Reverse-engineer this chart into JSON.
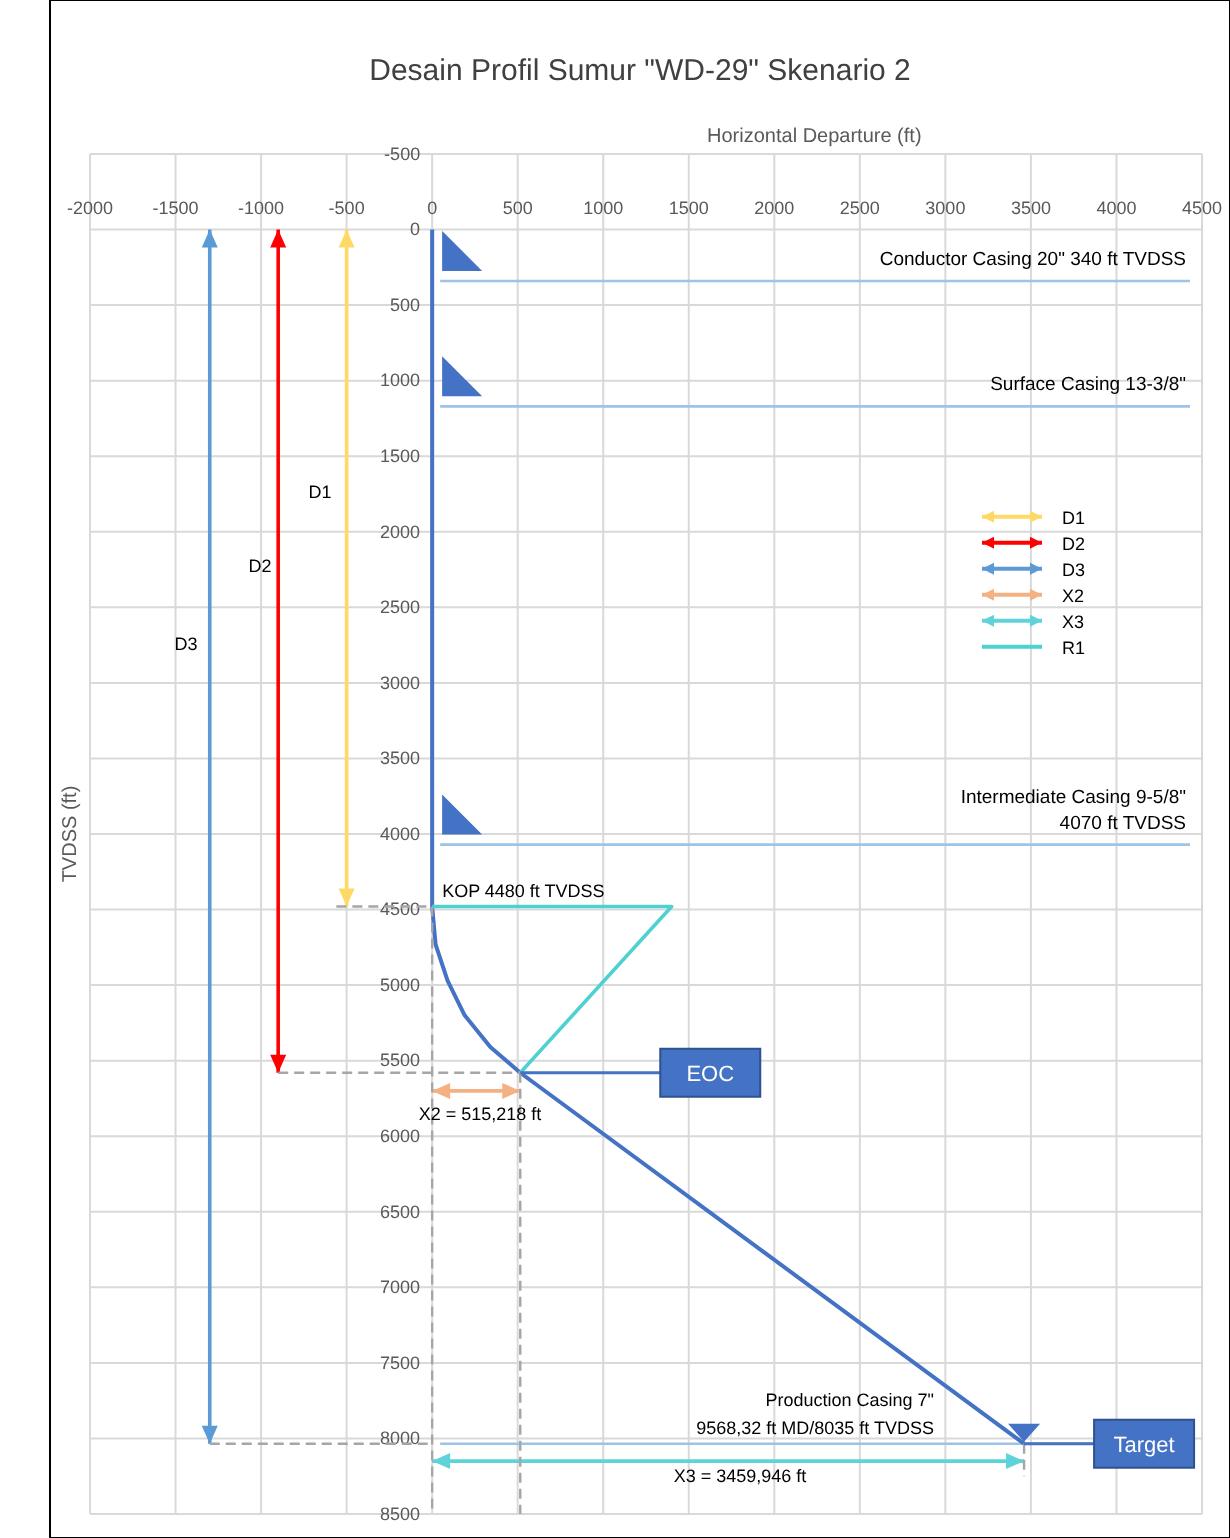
{
  "chart_data": {
    "type": "line",
    "title": "Desain Profil Sumur \"WD-29\" Skenario 2",
    "xlabel": "Horizontal Departure (ft)",
    "ylabel": "TVDSS (ft)",
    "xlim": [
      -2000,
      4500
    ],
    "xticks": [
      -2000,
      -1500,
      -1000,
      -500,
      0,
      500,
      1000,
      1500,
      2000,
      2500,
      3000,
      3500,
      4000,
      4500
    ],
    "ylim": [
      8500,
      -500
    ],
    "yticks": [
      -500,
      0,
      500,
      1000,
      1500,
      2000,
      2500,
      3000,
      3500,
      4000,
      4500,
      5000,
      5500,
      6000,
      6500,
      7000,
      7500,
      8000,
      8500
    ],
    "grid": true,
    "legend": "right",
    "marker": "none",
    "series": [
      {
        "x": [
          0,
          0,
          20,
          90,
          190,
          340,
          515,
          3460
        ],
        "values": [
          0,
          4480,
          4730,
          4970,
          5200,
          5410,
          5580,
          8035
        ],
        "color": "#4472c4",
        "line_style": "solid"
      },
      {
        "name": "D1",
        "x": [
          -500,
          -500
        ],
        "values": [
          0,
          4480
        ],
        "color": "#ffd966",
        "line_style": "solid"
      },
      {
        "name": "D2",
        "x": [
          -900,
          -900
        ],
        "values": [
          0,
          5580
        ],
        "color": "#ff0000",
        "line_style": "solid"
      },
      {
        "name": "D3",
        "x": [
          -1300,
          -1300
        ],
        "values": [
          0,
          8035
        ],
        "color": "#5b9bd5",
        "line_style": "solid"
      },
      {
        "name": "X2",
        "x": [
          0,
          515
        ],
        "values": [
          5700,
          5700
        ],
        "color": "#f4b183",
        "line_style": "solid"
      },
      {
        "name": "X3",
        "x": [
          0,
          3460
        ],
        "values": [
          8150,
          8150
        ],
        "color": "#5fd3d9",
        "line_style": "solid"
      },
      {
        "name": "R1",
        "x": [
          0,
          1400,
          515
        ],
        "values": [
          4480,
          4480,
          5580
        ],
        "color": "#4fd1d1",
        "line_style": "solid"
      },
      {
        "x": [
          -560,
          0
        ],
        "values": [
          4480,
          4480
        ],
        "color": "#a6a6a6",
        "line_style": "dashed"
      },
      {
        "x": [
          -900,
          515
        ],
        "values": [
          5580,
          5580
        ],
        "color": "#a6a6a6",
        "line_style": "dashed"
      },
      {
        "x": [
          -1300,
          0
        ],
        "values": [
          8035,
          8035
        ],
        "color": "#a6a6a6",
        "line_style": "dashed"
      },
      {
        "x": [
          0,
          0
        ],
        "values": [
          4480,
          8500
        ],
        "color": "#a6a6a6",
        "line_style": "dashed"
      },
      {
        "x": [
          515,
          515
        ],
        "values": [
          5580,
          8500
        ],
        "color": "#a6a6a6",
        "line_style": "dashed"
      },
      {
        "x": [
          3460,
          3460
        ],
        "values": [
          8035,
          8250
        ],
        "color": "#a6a6a6",
        "line_style": "dashed"
      }
    ],
    "ref_lines": [
      {
        "axis": "y",
        "value": 340,
        "label": "Conductor Casing 20\" 340 ft TVDSS",
        "color": "#9dc3e6"
      },
      {
        "axis": "y",
        "value": 1170,
        "label": "Surface Casing 13-3/8\"",
        "color": "#9dc3e6"
      },
      {
        "axis": "y",
        "value": 4070,
        "label": "Intermediate Casing 9-5/8\"\n4070 ft TVDSS",
        "color": "#9dc3e6"
      },
      {
        "axis": "y",
        "value": 8035,
        "color": "#9dc3e6"
      }
    ],
    "annotations": [
      "D1",
      "D2",
      "D3",
      {
        "text": "KOP 4480 ft TVDSS",
        "x": 0,
        "y": 4480
      },
      {
        "text": "EOC",
        "x": 515,
        "y": 5580
      },
      "X2 = 515,218 ft",
      "X3 = 3459,946 ft",
      "Production Casing 7\"\n9568,32 ft MD/8035 ft TVDSS",
      "Target"
    ]
  }
}
